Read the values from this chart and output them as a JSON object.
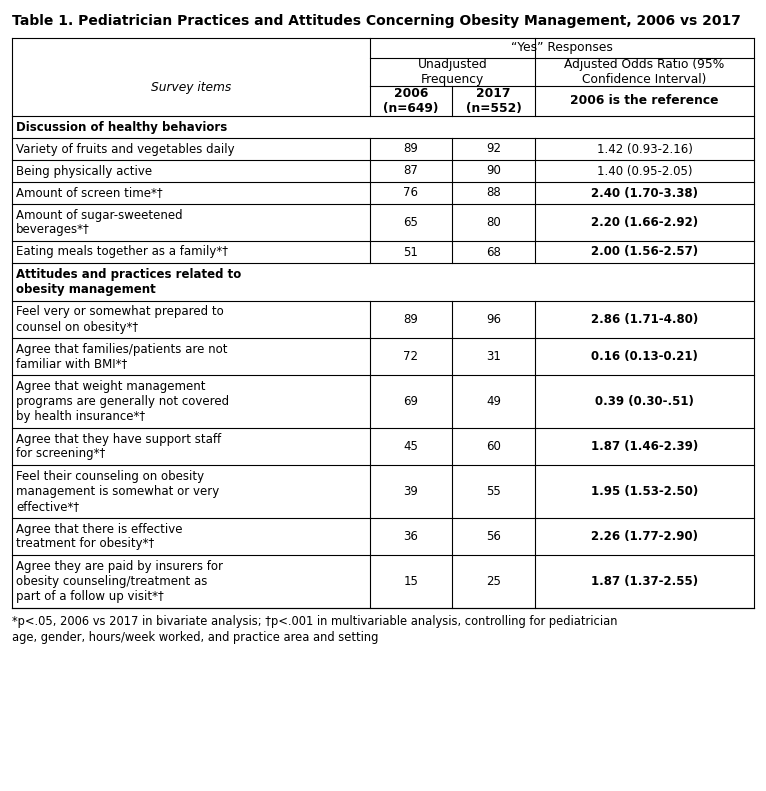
{
  "title": "Table 1. Pediatrician Practices and Attitudes Concerning Obesity Management, 2006 vs 2017",
  "footnote_line1": "*p<.05, 2006 vs 2017 in bivariate analysis; †p<.001 in multivariable analysis, controlling for pediatrician",
  "footnote_line2": "age, gender, hours/week worked, and practice area and setting",
  "col_headers": {
    "yes_responses": "“Yes” Responses",
    "unadjusted": "Unadjusted\nFrequency",
    "adjusted": "Adjusted Odds Ratio (95%\nConfidence Interval)",
    "y2006": "2006\n(n=649)",
    "y2017": "2017\n(n=552)",
    "reference": "2006 is the reference"
  },
  "row_label_header": "Survey items",
  "rows": [
    {
      "label": "Discussion of healthy behaviors",
      "v2006": "",
      "v2017": "",
      "aor": "",
      "bold_label": true,
      "bold_aor": false,
      "section_header": true,
      "underline_word": ""
    },
    {
      "label": "Variety of fruits and vegetables daily",
      "v2006": "89",
      "v2017": "92",
      "aor": "1.42 (0.93-2.16)",
      "bold_label": false,
      "bold_aor": false,
      "section_header": false,
      "underline_word": ""
    },
    {
      "label": "Being physically active",
      "v2006": "87",
      "v2017": "90",
      "aor": "1.40 (0.95-2.05)",
      "bold_label": false,
      "bold_aor": false,
      "section_header": false,
      "underline_word": ""
    },
    {
      "label": "Amount of screen time*†",
      "v2006": "76",
      "v2017": "88",
      "aor": "2.40 (1.70-3.38)",
      "bold_label": false,
      "bold_aor": true,
      "section_header": false,
      "underline_word": ""
    },
    {
      "label": "Amount of sugar-sweetened\nbeverages*†",
      "v2006": "65",
      "v2017": "80",
      "aor": "2.20 (1.66-2.92)",
      "bold_label": false,
      "bold_aor": true,
      "section_header": false,
      "underline_word": ""
    },
    {
      "label": "Eating meals together as a family*†",
      "v2006": "51",
      "v2017": "68",
      "aor": "2.00 (1.56-2.57)",
      "bold_label": false,
      "bold_aor": true,
      "section_header": false,
      "underline_word": ""
    },
    {
      "label": "Attitudes and practices related to\nobesity management",
      "v2006": "",
      "v2017": "",
      "aor": "",
      "bold_label": true,
      "bold_aor": false,
      "section_header": true,
      "underline_word": ""
    },
    {
      "label": "Feel very or somewhat prepared to\ncounsel on obesity*†",
      "v2006": "89",
      "v2017": "96",
      "aor": "2.86 (1.71-4.80)",
      "bold_label": false,
      "bold_aor": true,
      "section_header": false,
      "underline_word": ""
    },
    {
      "label": "Agree that families/patients are not\nfamiliar with BMI*†",
      "v2006": "72",
      "v2017": "31",
      "aor": "0.16 (0.13-0.21)",
      "bold_label": false,
      "bold_aor": true,
      "section_header": false,
      "underline_word": "not"
    },
    {
      "label": "Agree that weight management\nprograms are generally not covered\nby health insurance*†",
      "v2006": "69",
      "v2017": "49",
      "aor": "0.39 (0.30-.51)",
      "bold_label": false,
      "bold_aor": true,
      "section_header": false,
      "underline_word": "not"
    },
    {
      "label": "Agree that they have support staff\nfor screening*†",
      "v2006": "45",
      "v2017": "60",
      "aor": "1.87 (1.46-2.39)",
      "bold_label": false,
      "bold_aor": true,
      "section_header": false,
      "underline_word": ""
    },
    {
      "label": "Feel their counseling on obesity\nmanagement is somewhat or very\neffective*†",
      "v2006": "39",
      "v2017": "55",
      "aor": "1.95 (1.53-2.50)",
      "bold_label": false,
      "bold_aor": true,
      "section_header": false,
      "underline_word": ""
    },
    {
      "label": "Agree that there is effective\ntreatment for obesity*†",
      "v2006": "36",
      "v2017": "56",
      "aor": "2.26 (1.77-2.90)",
      "bold_label": false,
      "bold_aor": true,
      "section_header": false,
      "underline_word": ""
    },
    {
      "label": "Agree they are paid by insurers for\nobesity counseling/treatment as\npart of a follow up visit*†",
      "v2006": "15",
      "v2017": "25",
      "aor": "1.87 (1.37-2.55)",
      "bold_label": false,
      "bold_aor": true,
      "section_header": false,
      "underline_word": ""
    }
  ],
  "background_color": "#ffffff",
  "border_color": "#000000",
  "text_color": "#000000",
  "fig_width": 7.66,
  "fig_height": 7.91,
  "dpi": 100
}
